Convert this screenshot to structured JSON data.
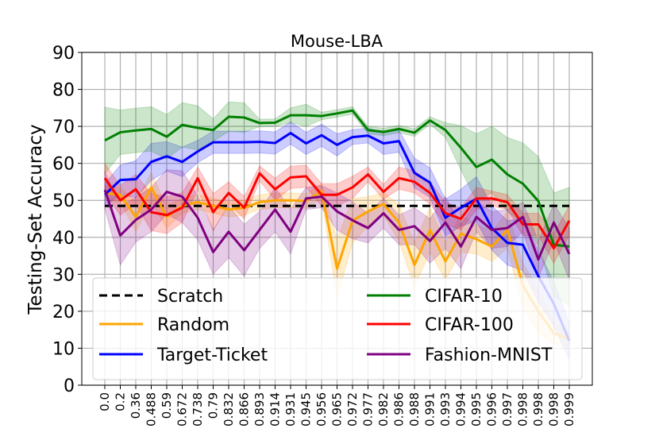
{
  "chart_data": {
    "type": "line",
    "title": "Mouse-LBA",
    "xlabel": "",
    "ylabel": "Testing-Set Accuracy",
    "ylim": [
      0,
      90
    ],
    "yticks": [
      0,
      10,
      20,
      30,
      40,
      50,
      60,
      70,
      80,
      90
    ],
    "grid": true,
    "legend_placement": "bottom",
    "categories": [
      "0.0",
      "0.2",
      "0.36",
      "0.488",
      "0.59",
      "0.672",
      "0.738",
      "0.79",
      "0.832",
      "0.866",
      "0.893",
      "0.914",
      "0.931",
      "0.945",
      "0.956",
      "0.965",
      "0.972",
      "0.977",
      "0.982",
      "0.986",
      "0.988",
      "0.991",
      "0.993",
      "0.994",
      "0.995",
      "0.996",
      "0.997",
      "0.998",
      "0.998",
      "0.998",
      "0.999"
    ],
    "baseline": {
      "name": "Scratch",
      "value": 48.5,
      "color": "#000000"
    },
    "series": [
      {
        "name": "Random",
        "color": "#ffa500",
        "values": [
          52,
          51.5,
          45.5,
          53.5,
          45.5,
          48.5,
          49.5,
          48.5,
          47.5,
          48,
          49.5,
          50,
          50,
          49.8,
          52.5,
          31.5,
          44.5,
          47,
          49,
          44,
          32.5,
          42,
          33.5,
          41,
          39.5,
          37.5,
          42,
          27,
          20,
          14,
          12.5
        ],
        "std": [
          2,
          2,
          4,
          4,
          3,
          2,
          2,
          2,
          2,
          2,
          2,
          2,
          2,
          2,
          2,
          8,
          6,
          4,
          3,
          5,
          6,
          6,
          5,
          5,
          4,
          4,
          5,
          6,
          6,
          3,
          2
        ]
      },
      {
        "name": "Target-Ticket",
        "color": "#0000ff",
        "values": [
          51.5,
          55.5,
          55.7,
          60.4,
          61.9,
          60.4,
          63.2,
          65.7,
          65.7,
          65.7,
          65.8,
          65.5,
          68.2,
          65.4,
          67.6,
          65,
          67.1,
          67.5,
          65.4,
          66,
          57.4,
          54.8,
          45.3,
          48,
          50.4,
          42.5,
          38.5,
          38,
          29.5,
          22,
          12
        ],
        "std": [
          3,
          4,
          5,
          5,
          4,
          4,
          3,
          3,
          3,
          3,
          3,
          3,
          3,
          3,
          3,
          3,
          2,
          2,
          3,
          3,
          4,
          4,
          5,
          5,
          6,
          6,
          6,
          7,
          7,
          6,
          5
        ]
      },
      {
        "name": "CIFAR-10",
        "color": "#008000",
        "values": [
          66.2,
          68.4,
          68.9,
          69.3,
          67.2,
          70.4,
          69.6,
          69,
          72.6,
          72.4,
          70.9,
          71,
          73,
          73,
          72.8,
          73.5,
          74.3,
          69,
          68.5,
          69.3,
          68.3,
          71.6,
          69,
          64.2,
          59,
          61,
          57,
          54.5,
          49.8,
          38,
          37.5
        ],
        "std": [
          9,
          6,
          6,
          6,
          6,
          6,
          6,
          3,
          4,
          4,
          1,
          1,
          2,
          3,
          1,
          1,
          1,
          1,
          1,
          1,
          1,
          1,
          2,
          6,
          9,
          9,
          10,
          11,
          12,
          14,
          16
        ]
      },
      {
        "name": "CIFAR-100",
        "color": "#ff0000",
        "values": [
          56,
          50,
          53,
          46.8,
          46,
          48,
          56,
          46.8,
          52,
          48,
          57.3,
          53,
          56.2,
          56.5,
          51.5,
          51.5,
          53.5,
          57,
          52.3,
          56,
          55,
          52,
          46.5,
          45,
          50.5,
          50.5,
          49.5,
          43.5,
          43.5,
          37,
          44.5
        ],
        "std": [
          4,
          4,
          4,
          5,
          5,
          4,
          3,
          5,
          3,
          3,
          2,
          3,
          3,
          3,
          3,
          3,
          3,
          2,
          2,
          3,
          3,
          3,
          3,
          3,
          3,
          2,
          2,
          3,
          3,
          4,
          4
        ]
      },
      {
        "name": "Fashion-MNIST",
        "color": "#800080",
        "values": [
          52.8,
          40.5,
          44.7,
          47.5,
          52.3,
          51,
          45.3,
          36,
          41.5,
          36.5,
          42,
          47.5,
          41.5,
          50.5,
          51,
          47,
          44.6,
          42.5,
          46.5,
          42,
          43,
          39,
          44,
          37.5,
          45.5,
          42,
          42.5,
          45.5,
          34,
          44,
          35.5
        ],
        "std": [
          5,
          8,
          6,
          6,
          6,
          7,
          6,
          6,
          7,
          7,
          5,
          6,
          6,
          3,
          3,
          5,
          5,
          4,
          4,
          4,
          5,
          6,
          7,
          6,
          4,
          5,
          5,
          4,
          5,
          5,
          7
        ]
      }
    ]
  }
}
